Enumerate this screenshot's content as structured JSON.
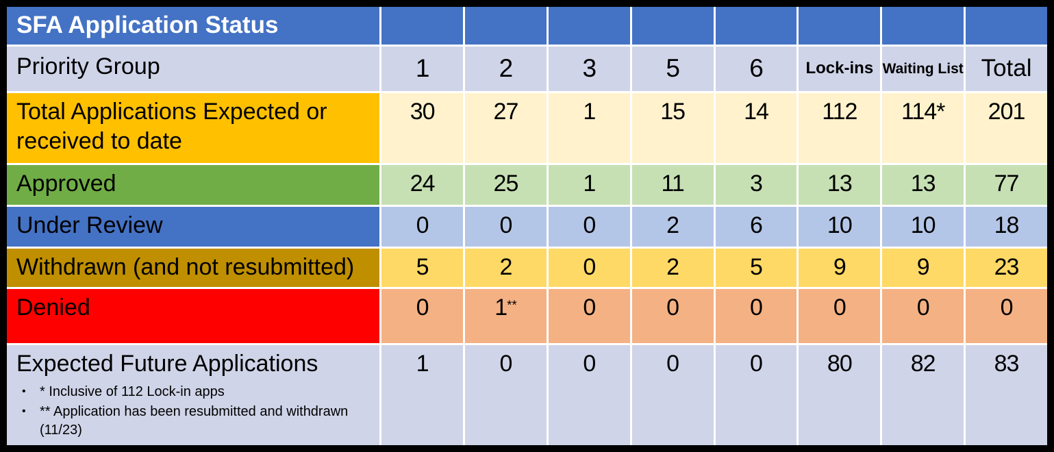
{
  "chart_data": {
    "type": "table",
    "title": "SFA Application Status",
    "columns": [
      "Priority Group",
      "1",
      "2",
      "3",
      "5",
      "6",
      "Lock-ins",
      "Waiting List",
      "Total"
    ],
    "rows": [
      [
        "Total Applications Expected or received to date",
        "30",
        "27",
        "1",
        "15",
        "14",
        "112",
        "114*",
        "201"
      ],
      [
        "Approved",
        "24",
        "25",
        "1",
        "11",
        "3",
        "13",
        "13",
        "77"
      ],
      [
        "Under Review",
        "0",
        "0",
        "0",
        "2",
        "6",
        "10",
        "10",
        "18"
      ],
      [
        "Withdrawn (and not resubmitted)",
        "5",
        "2",
        "0",
        "2",
        "5",
        "9",
        "9",
        "23"
      ],
      [
        "Denied",
        "0",
        "1**",
        "0",
        "0",
        "0",
        "0",
        "0",
        "0"
      ],
      [
        "Expected Future Applications",
        "1",
        "0",
        "0",
        "0",
        "0",
        "80",
        "82",
        "83"
      ]
    ],
    "footnotes": [
      "* Inclusive of 112 Lock-in apps",
      "** Application has been resubmitted and withdrawn (11/23)"
    ],
    "legend_position": "none",
    "grid": "white cell separators on colored rows"
  },
  "denied_cell": {
    "value": "1",
    "marker": "**"
  },
  "bullet_glyph": "•",
  "colors": {
    "frame_black": "#000000",
    "header_blue": "#4472C4",
    "lavender": "#CFD4E8",
    "gold_label": "#FFC000",
    "cream_cells": "#FFF2CC",
    "green_label": "#70AD47",
    "light_green_cells": "#C6E0B4",
    "blue_label": "#4472C4",
    "light_blue_cells": "#B4C6E7",
    "dark_gold_label": "#BF8F00",
    "yellow_cells": "#FFD966",
    "red_label": "#FF0000",
    "light_orange_cells": "#F4B183",
    "grid_white": "#FFFFFF",
    "title_text": "#FFFFFF",
    "body_text": "#000000"
  }
}
